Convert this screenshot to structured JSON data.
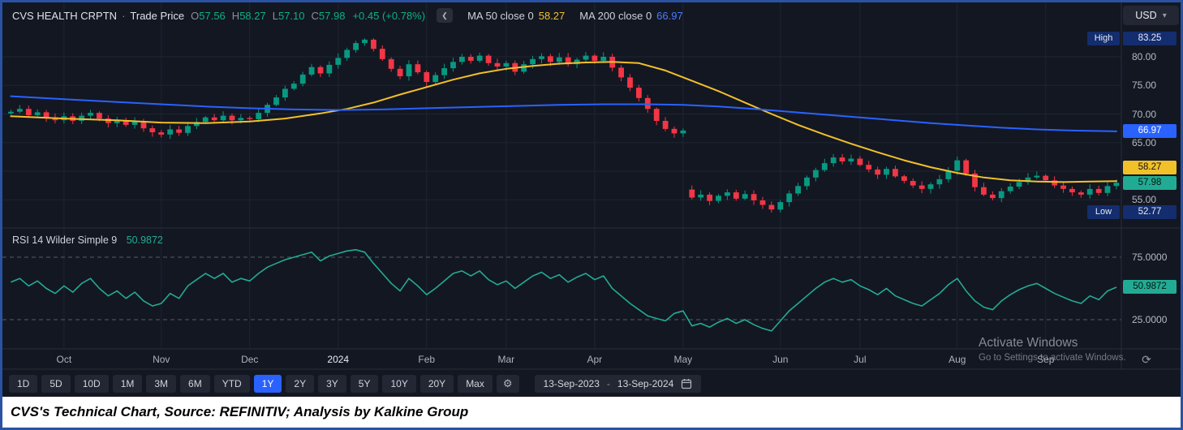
{
  "header": {
    "symbol": "CVS HEALTH CRPTN",
    "separator": "·",
    "series_label": "Trade Price",
    "ohlc": {
      "o_key": "O",
      "o": "57.56",
      "h_key": "H",
      "h": "58.27",
      "l_key": "L",
      "l": "57.10",
      "c_key": "C",
      "c": "57.98",
      "change": "+0.45 (+0.78%)"
    },
    "ma50_label": "MA 50 close 0",
    "ma50_value": "58.27",
    "ma200_label": "MA 200 close 0",
    "ma200_value": "66.97",
    "currency": "USD"
  },
  "price_scale": {
    "high_key": "High",
    "high": "83.25",
    "low_key": "Low",
    "low": "52.77",
    "ticks": [
      "80.00",
      "75.00",
      "70.00",
      "65.00",
      "55.00"
    ],
    "ma200_badge": "66.97",
    "ma50_badge": "58.27",
    "last_badge": "57.98"
  },
  "rsi_pane": {
    "legend": "RSI 14 Wilder Simple 9",
    "value": "50.9872",
    "upper_label": "75.0000",
    "lower_label": "25.0000"
  },
  "toolbar": {
    "ranges": [
      "1D",
      "5D",
      "10D",
      "1M",
      "3M",
      "6M",
      "YTD",
      "1Y",
      "2Y",
      "3Y",
      "5Y",
      "10Y",
      "20Y",
      "Max"
    ],
    "selected": "1Y",
    "date_from": "13-Sep-2023",
    "date_separator": "-",
    "date_to": "13-Sep-2024"
  },
  "watermark": {
    "line1": "Activate Windows",
    "line2": "Go to Settings to activate Windows."
  },
  "caption": "CVS's Technical Chart, Source: REFINITIV; Analysis by Kalkine Group",
  "icons": {
    "chevron_left": "❮",
    "chevron_down": "▾",
    "gear": "⚙",
    "refresh": "⟳"
  },
  "colors": {
    "background": "#131722",
    "up": "#089981",
    "down": "#f23645",
    "ma50": "#f2c029",
    "ma200": "#2962ff",
    "rsi": "#22ab94",
    "grid": "#1e2433",
    "divider": "#2a2e39",
    "badge_navy": "#142d6e",
    "badge_yellow": "#f2c029",
    "badge_green": "#22ab94",
    "selected_range": "#2962ff"
  },
  "chart_data": [
    {
      "type": "candlestick",
      "name": "CVS HEALTH CRPTN Trade Price",
      "currency": "USD",
      "date_range": [
        "13-Sep-2023",
        "13-Sep-2024"
      ],
      "x_tick_labels": [
        "Oct",
        "Nov",
        "Dec",
        "2024",
        "Feb",
        "Mar",
        "Apr",
        "May",
        "Jun",
        "Jul",
        "Aug",
        "Sep"
      ],
      "x_tick_index": [
        6,
        17,
        27,
        37,
        47,
        56,
        66,
        76,
        87,
        96,
        107,
        117
      ],
      "y_ticks": [
        80,
        75,
        70,
        65,
        60,
        55
      ],
      "ylim": [
        51.5,
        84.8
      ],
      "high": 83.25,
      "low": 52.77,
      "high_index": 40,
      "low_index": 86,
      "last_close": 57.98,
      "ohlc_today": {
        "open": 57.56,
        "high": 58.27,
        "low": 57.1,
        "close": 57.98,
        "change": "+0.45 (+0.78%)"
      },
      "close": [
        70.4,
        70.9,
        69.8,
        70.3,
        69.4,
        68.9,
        69.6,
        68.8,
        69.7,
        70.2,
        69.2,
        68.4,
        68.9,
        68.1,
        68.7,
        67.5,
        66.8,
        66.4,
        67.3,
        66.7,
        67.9,
        68.6,
        69.4,
        68.9,
        69.7,
        68.9,
        69.3,
        69.1,
        70.2,
        71.6,
        72.9,
        74.4,
        75.3,
        76.9,
        78.2,
        77.1,
        78.6,
        79.8,
        81.2,
        82.4,
        83.0,
        81.4,
        79.6,
        77.9,
        76.6,
        78.7,
        77.3,
        75.6,
        76.8,
        78.0,
        79.1,
        80.0,
        79.3,
        80.2,
        78.9,
        78.3,
        78.9,
        77.4,
        78.7,
        79.6,
        80.1,
        79.1,
        79.9,
        78.7,
        79.5,
        80.2,
        79.3,
        80.0,
        78.1,
        76.4,
        74.6,
        72.8,
        70.9,
        68.8,
        67.4,
        66.6,
        67.1,
        55.4,
        55.9,
        54.8,
        55.7,
        56.3,
        55.2,
        56.0,
        54.9,
        54.1,
        53.3,
        54.6,
        56.1,
        57.4,
        58.9,
        60.2,
        61.4,
        62.4,
        61.7,
        62.2,
        61.1,
        60.3,
        59.4,
        60.4,
        59.1,
        58.3,
        57.5,
        56.9,
        57.7,
        58.6,
        60.1,
        61.9,
        59.6,
        57.2,
        55.9,
        55.3,
        56.5,
        57.3,
        58.1,
        58.9,
        59.2,
        58.4,
        57.5,
        56.9,
        56.3,
        55.9,
        56.9,
        56.2,
        57.4,
        57.98
      ],
      "overlays": [
        {
          "name": "MA 50",
          "color": "#f2c029",
          "last": 58.27,
          "anchors": [
            [
              0,
              69.6
            ],
            [
              6,
              69.2
            ],
            [
              12,
              68.9
            ],
            [
              17,
              68.5
            ],
            [
              22,
              68.4
            ],
            [
              27,
              68.7
            ],
            [
              31,
              69.2
            ],
            [
              35,
              70.1
            ],
            [
              38,
              70.9
            ],
            [
              41,
              72.0
            ],
            [
              44,
              73.4
            ],
            [
              47,
              74.7
            ],
            [
              50,
              76.0
            ],
            [
              53,
              77.1
            ],
            [
              56,
              77.9
            ],
            [
              59,
              78.4
            ],
            [
              62,
              78.8
            ],
            [
              65,
              79.0
            ],
            [
              68,
              79.1
            ],
            [
              71,
              78.9
            ],
            [
              74,
              77.6
            ],
            [
              77,
              75.8
            ],
            [
              80,
              74.0
            ],
            [
              83,
              72.0
            ],
            [
              86,
              70.0
            ],
            [
              89,
              68.1
            ],
            [
              92,
              66.4
            ],
            [
              95,
              64.8
            ],
            [
              98,
              63.3
            ],
            [
              101,
              61.9
            ],
            [
              104,
              60.7
            ],
            [
              107,
              59.7
            ],
            [
              110,
              58.9
            ],
            [
              113,
              58.4
            ],
            [
              116,
              58.2
            ],
            [
              119,
              58.1
            ],
            [
              122,
              58.2
            ],
            [
              125,
              58.27
            ]
          ]
        },
        {
          "name": "MA 200",
          "color": "#2962ff",
          "last": 66.97,
          "anchors": [
            [
              0,
              73.1
            ],
            [
              6,
              72.6
            ],
            [
              12,
              72.1
            ],
            [
              17,
              71.7
            ],
            [
              22,
              71.3
            ],
            [
              27,
              71.0
            ],
            [
              32,
              70.8
            ],
            [
              37,
              70.7
            ],
            [
              42,
              70.8
            ],
            [
              47,
              71.0
            ],
            [
              52,
              71.2
            ],
            [
              57,
              71.4
            ],
            [
              62,
              71.6
            ],
            [
              67,
              71.7
            ],
            [
              72,
              71.7
            ],
            [
              76,
              71.6
            ],
            [
              80,
              71.3
            ],
            [
              84,
              70.9
            ],
            [
              88,
              70.4
            ],
            [
              92,
              69.9
            ],
            [
              96,
              69.4
            ],
            [
              100,
              68.9
            ],
            [
              104,
              68.4
            ],
            [
              108,
              68.0
            ],
            [
              112,
              67.6
            ],
            [
              116,
              67.3
            ],
            [
              120,
              67.1
            ],
            [
              125,
              66.97
            ]
          ]
        }
      ]
    },
    {
      "type": "line",
      "name": "RSI 14 Wilder Simple 9",
      "color": "#22ab94",
      "ylim": [
        0,
        100
      ],
      "bands": [
        75,
        25
      ],
      "band_labels": [
        "75.0000",
        "25.0000"
      ],
      "last": 50.9872,
      "values": [
        55,
        58,
        52,
        56,
        50,
        46,
        52,
        47,
        54,
        58,
        50,
        44,
        48,
        42,
        47,
        40,
        36,
        38,
        46,
        42,
        52,
        57,
        62,
        58,
        62,
        55,
        58,
        56,
        62,
        67,
        70,
        73,
        75,
        77,
        79,
        72,
        76,
        78,
        80,
        81,
        79,
        70,
        62,
        54,
        48,
        58,
        52,
        45,
        50,
        56,
        62,
        64,
        60,
        64,
        57,
        53,
        56,
        50,
        55,
        60,
        63,
        58,
        61,
        55,
        59,
        62,
        57,
        60,
        50,
        44,
        38,
        33,
        28,
        26,
        24,
        30,
        32,
        20,
        22,
        19,
        23,
        26,
        22,
        25,
        21,
        18,
        16,
        24,
        32,
        38,
        44,
        50,
        55,
        58,
        55,
        57,
        52,
        49,
        45,
        50,
        44,
        41,
        38,
        36,
        41,
        46,
        53,
        58,
        48,
        40,
        35,
        33,
        40,
        45,
        49,
        52,
        54,
        50,
        46,
        43,
        40,
        38,
        44,
        41,
        48,
        50.99
      ]
    }
  ]
}
